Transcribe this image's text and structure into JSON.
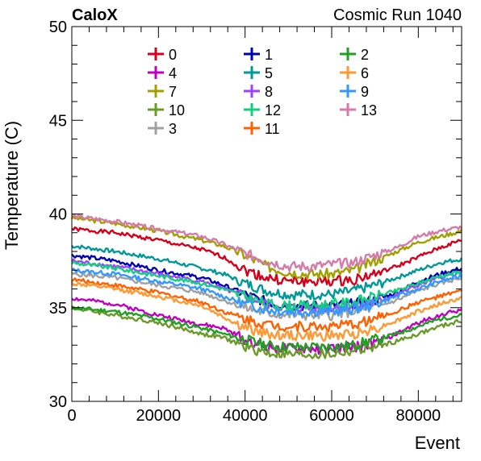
{
  "header": {
    "left_label": "CaloX",
    "right_label": "Cosmic Run 1040"
  },
  "chart_data": {
    "type": "line",
    "title": "",
    "xlabel": "Event",
    "ylabel": "Temperature (C)",
    "xlim": [
      0,
      90000
    ],
    "ylim": [
      30,
      50
    ],
    "x_ticks": [
      0,
      20000,
      40000,
      60000,
      80000
    ],
    "y_ticks": [
      30,
      35,
      40,
      45,
      50
    ],
    "legend_position": "top-center",
    "x": [
      0,
      10000,
      20000,
      30000,
      35000,
      40000,
      45000,
      50000,
      55000,
      60000,
      65000,
      70000,
      75000,
      80000,
      85000,
      90000
    ],
    "series": [
      {
        "name": "0",
        "color": "#d6001c",
        "values": [
          39.2,
          39.0,
          38.6,
          38.1,
          37.7,
          37.0,
          36.6,
          36.4,
          36.4,
          36.4,
          36.5,
          36.8,
          37.2,
          37.7,
          38.2,
          38.6
        ]
      },
      {
        "name": "4",
        "color": "#c000c0",
        "values": [
          35.5,
          35.2,
          34.6,
          34.1,
          33.9,
          33.3,
          32.9,
          32.8,
          32.8,
          32.8,
          32.9,
          33.1,
          33.6,
          34.2,
          34.6,
          34.9
        ]
      },
      {
        "name": "7",
        "color": "#a0a000",
        "values": [
          39.8,
          39.5,
          39.1,
          38.6,
          38.3,
          37.8,
          37.2,
          36.9,
          36.8,
          36.8,
          37.0,
          37.5,
          38.0,
          38.5,
          38.8,
          39.1
        ]
      },
      {
        "name": "10",
        "color": "#6b9a2a",
        "values": [
          35.0,
          34.6,
          34.2,
          33.6,
          33.4,
          32.9,
          32.6,
          32.5,
          32.5,
          32.5,
          32.7,
          32.9,
          33.2,
          33.6,
          34.0,
          34.3
        ]
      },
      {
        "name": "3",
        "color": "#a0a0a0",
        "values": [
          36.8,
          36.6,
          36.2,
          35.8,
          35.4,
          35.0,
          34.7,
          34.6,
          34.6,
          34.6,
          34.8,
          35.0,
          35.4,
          35.9,
          36.3,
          36.6
        ]
      },
      {
        "name": "1",
        "color": "#0000b4",
        "values": [
          37.8,
          37.5,
          37.0,
          36.6,
          36.2,
          35.7,
          35.3,
          35.1,
          35.1,
          35.1,
          35.2,
          35.4,
          35.8,
          36.4,
          36.8,
          37.1
        ]
      },
      {
        "name": "5",
        "color": "#00999a",
        "values": [
          38.3,
          38.0,
          37.6,
          37.1,
          36.8,
          36.3,
          35.9,
          35.7,
          35.7,
          35.7,
          35.9,
          36.2,
          36.6,
          37.0,
          37.4,
          37.6
        ]
      },
      {
        "name": "8",
        "color": "#a040ff",
        "values": [
          37.5,
          37.2,
          36.8,
          36.4,
          36.0,
          35.6,
          35.2,
          35.0,
          35.0,
          35.0,
          35.1,
          35.3,
          35.7,
          36.2,
          36.6,
          36.9
        ]
      },
      {
        "name": "12",
        "color": "#10d080",
        "values": [
          37.4,
          37.1,
          36.7,
          36.3,
          36.0,
          35.6,
          35.2,
          35.1,
          35.1,
          35.2,
          35.3,
          35.6,
          35.9,
          36.3,
          36.7,
          36.9
        ]
      },
      {
        "name": "11",
        "color": "#ff6000",
        "values": [
          36.5,
          36.2,
          35.8,
          35.3,
          34.8,
          34.4,
          34.1,
          34.0,
          34.0,
          34.0,
          34.1,
          34.4,
          34.8,
          35.3,
          35.6,
          35.9
        ]
      },
      {
        "name": "2",
        "color": "#20a020",
        "values": [
          35.0,
          34.8,
          34.4,
          33.9,
          33.6,
          33.3,
          33.0,
          32.9,
          32.9,
          32.9,
          33.0,
          33.3,
          33.6,
          34.0,
          34.4,
          34.6
        ]
      },
      {
        "name": "6",
        "color": "#ff9933",
        "values": [
          36.3,
          36.0,
          35.6,
          35.1,
          34.5,
          33.9,
          33.6,
          33.5,
          33.5,
          33.5,
          33.6,
          33.9,
          34.3,
          34.8,
          35.2,
          35.5
        ]
      },
      {
        "name": "9",
        "color": "#3399ff",
        "values": [
          37.0,
          36.8,
          36.4,
          36.0,
          35.6,
          35.2,
          34.9,
          34.8,
          34.8,
          34.8,
          34.9,
          35.2,
          35.6,
          36.0,
          36.4,
          36.7
        ]
      },
      {
        "name": "13",
        "color": "#d67aaa",
        "values": [
          39.9,
          39.6,
          39.2,
          38.8,
          38.4,
          37.9,
          37.5,
          37.2,
          37.2,
          37.3,
          37.4,
          37.8,
          38.2,
          38.8,
          39.1,
          39.3
        ]
      }
    ],
    "legend_order": [
      "0",
      "1",
      "2",
      "4",
      "5",
      "6",
      "7",
      "8",
      "9",
      "10",
      "12",
      "13",
      "3",
      "11"
    ]
  }
}
